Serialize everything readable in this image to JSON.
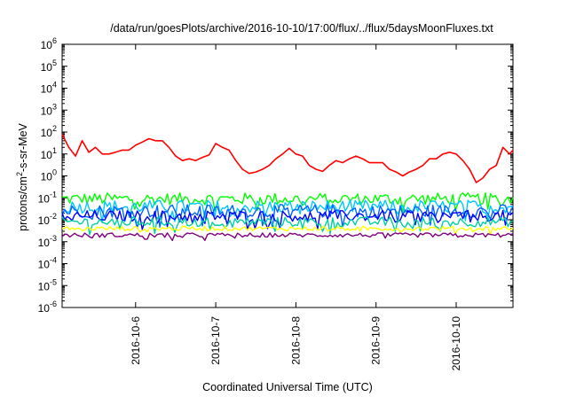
{
  "chart_data": {
    "type": "line",
    "title": "/data/run/goesPlots/archive/2016-10-10/17:00/flux/../flux/5daysMoonFluxes.txt",
    "xlabel": "Coordinated Universal Time (UTC)",
    "ylabel_main": "protons/cm",
    "ylabel_sup": "2",
    "ylabel_tail": "-s-sr-MeV",
    "yscale": "log",
    "ylim_exponents": [
      -6,
      6
    ],
    "y_tick_base": "10",
    "y_tick_exponents": [
      "6",
      "5",
      "4",
      "3",
      "2",
      "1",
      "0",
      "-1",
      "-2",
      "-3",
      "-4",
      "-5",
      "-6"
    ],
    "xlim": [
      "2016-10-05T02:00",
      "2016-10-10T17:00"
    ],
    "x_ticks": [
      {
        "label": "2016-10-6",
        "date": "2016-10-06T00:00"
      },
      {
        "label": "2016-10-7",
        "date": "2016-10-07T00:00"
      },
      {
        "label": "2016-10-8",
        "date": "2016-10-08T00:00"
      },
      {
        "label": "2016-10-9",
        "date": "2016-10-09T00:00"
      },
      {
        "label": "2016-10-10",
        "date": "2016-10-10T00:00"
      }
    ],
    "grid": false,
    "legend": "none",
    "series": [
      {
        "color": "#ff0000",
        "style": "highly variable flux",
        "points": [
          [
            "2016-10-05T02:00",
            80
          ],
          [
            "2016-10-05T04:00",
            20
          ],
          [
            "2016-10-05T06:00",
            8
          ],
          [
            "2016-10-05T08:00",
            40
          ],
          [
            "2016-10-05T10:00",
            12
          ],
          [
            "2016-10-05T12:00",
            20
          ],
          [
            "2016-10-05T14:00",
            10
          ],
          [
            "2016-10-05T16:00",
            10
          ],
          [
            "2016-10-05T18:00",
            12
          ],
          [
            "2016-10-05T20:00",
            15
          ],
          [
            "2016-10-05T22:00",
            15
          ],
          [
            "2016-10-06T00:00",
            25
          ],
          [
            "2016-10-06T02:00",
            35
          ],
          [
            "2016-10-06T04:00",
            50
          ],
          [
            "2016-10-06T06:00",
            40
          ],
          [
            "2016-10-06T08:00",
            40
          ],
          [
            "2016-10-06T10:00",
            20
          ],
          [
            "2016-10-06T12:00",
            8
          ],
          [
            "2016-10-06T14:00",
            5
          ],
          [
            "2016-10-06T16:00",
            6
          ],
          [
            "2016-10-06T18:00",
            5
          ],
          [
            "2016-10-06T20:00",
            7
          ],
          [
            "2016-10-06T22:00",
            9
          ],
          [
            "2016-10-07T00:00",
            30
          ],
          [
            "2016-10-07T02:00",
            20
          ],
          [
            "2016-10-07T04:00",
            15
          ],
          [
            "2016-10-07T06:00",
            5
          ],
          [
            "2016-10-07T08:00",
            2
          ],
          [
            "2016-10-07T10:00",
            1.3
          ],
          [
            "2016-10-07T12:00",
            1.5
          ],
          [
            "2016-10-07T14:00",
            2
          ],
          [
            "2016-10-07T16:00",
            3
          ],
          [
            "2016-10-07T18:00",
            6
          ],
          [
            "2016-10-07T20:00",
            10
          ],
          [
            "2016-10-07T22:00",
            18
          ],
          [
            "2016-10-08T00:00",
            10
          ],
          [
            "2016-10-08T02:00",
            8
          ],
          [
            "2016-10-08T04:00",
            3
          ],
          [
            "2016-10-08T06:00",
            2
          ],
          [
            "2016-10-08T08:00",
            1.6
          ],
          [
            "2016-10-08T10:00",
            3
          ],
          [
            "2016-10-08T12:00",
            5
          ],
          [
            "2016-10-08T14:00",
            4
          ],
          [
            "2016-10-08T16:00",
            6
          ],
          [
            "2016-10-08T18:00",
            8
          ],
          [
            "2016-10-08T20:00",
            6
          ],
          [
            "2016-10-08T22:00",
            4
          ],
          [
            "2016-10-09T00:00",
            4
          ],
          [
            "2016-10-09T02:00",
            4
          ],
          [
            "2016-10-09T04:00",
            2
          ],
          [
            "2016-10-09T06:00",
            1.5
          ],
          [
            "2016-10-09T08:00",
            1
          ],
          [
            "2016-10-09T10:00",
            1.5
          ],
          [
            "2016-10-09T12:00",
            2
          ],
          [
            "2016-10-09T14:00",
            3
          ],
          [
            "2016-10-09T16:00",
            6
          ],
          [
            "2016-10-09T18:00",
            6
          ],
          [
            "2016-10-09T20:00",
            10
          ],
          [
            "2016-10-09T22:00",
            12
          ],
          [
            "2016-10-10T00:00",
            10
          ],
          [
            "2016-10-10T02:00",
            5
          ],
          [
            "2016-10-10T04:00",
            2
          ],
          [
            "2016-10-10T06:00",
            0.5
          ],
          [
            "2016-10-10T08:00",
            0.8
          ],
          [
            "2016-10-10T10:00",
            2
          ],
          [
            "2016-10-10T12:00",
            3
          ],
          [
            "2016-10-10T14:00",
            20
          ],
          [
            "2016-10-10T16:00",
            10
          ],
          [
            "2016-10-10T17:00",
            15
          ]
        ]
      },
      {
        "color": "#00ff00",
        "level": 0.09,
        "spread": 0.55
      },
      {
        "color": "#00c8ff",
        "level": 0.04,
        "spread": 0.6
      },
      {
        "color": "#0064ff",
        "level": 0.025,
        "spread": 0.6
      },
      {
        "color": "#0000ff",
        "level": 0.015,
        "spread": 0.5
      },
      {
        "color": "#00d0a0",
        "level": 0.008,
        "spread": 0.45
      },
      {
        "color": "#ffff00",
        "level": 0.004,
        "spread": 0.2
      },
      {
        "color": "#800080",
        "level": 0.002,
        "spread": 0.2
      }
    ]
  }
}
